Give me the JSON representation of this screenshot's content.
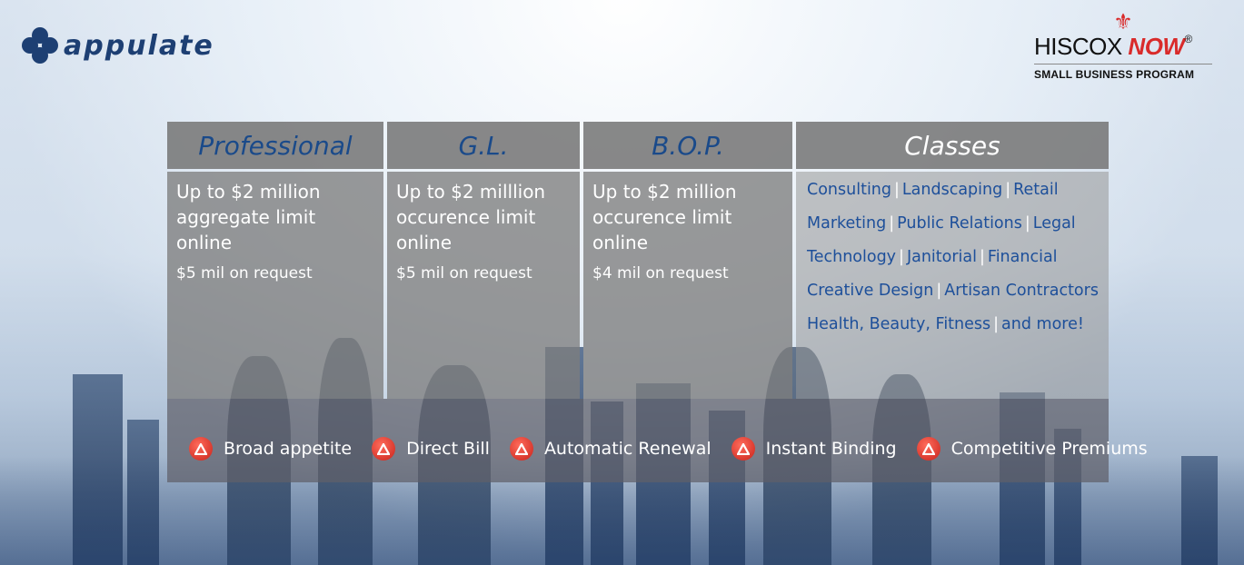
{
  "brand_left": {
    "name": "appulate"
  },
  "brand_right": {
    "name_part1": "HISCOX ",
    "name_part2": "NOW",
    "registered": "®",
    "subtitle": "SMALL BUSINESS PROGRAM"
  },
  "columns": [
    {
      "title": "Professional",
      "main": "Up to $2 million aggregate limit online",
      "sub": "$5 mil on request"
    },
    {
      "title": "G.L.",
      "main": "Up to $2 milllion occurence limit online",
      "sub": "$5 mil on request"
    },
    {
      "title": "B.O.P.",
      "main": "Up to $2 million occurence limit online",
      "sub": "$4 mil on request"
    }
  ],
  "classes": {
    "title": "Classes",
    "rows": [
      [
        "Consulting",
        "Landscaping",
        "Retail"
      ],
      [
        "Marketing",
        "Public Relations",
        "Legal"
      ],
      [
        "Technology",
        "Janitorial",
        "Financial"
      ],
      [
        "Creative Design",
        "Artisan Contractors"
      ],
      [
        "Health, Beauty, Fitness",
        "and more!"
      ]
    ]
  },
  "features": [
    "Broad appetite",
    "Direct Bill",
    "Automatic Renewal",
    "Instant Binding",
    "Competitive Premiums"
  ],
  "colors": {
    "accent_red": "#d92b2b",
    "brand_blue": "#1d3f73",
    "class_blue": "#1d4f9a"
  },
  "icons": {
    "feature_bullet": "warning-triangle-icon",
    "logo_left": "clover-icon",
    "logo_right": "fleur-de-lis-icon"
  }
}
